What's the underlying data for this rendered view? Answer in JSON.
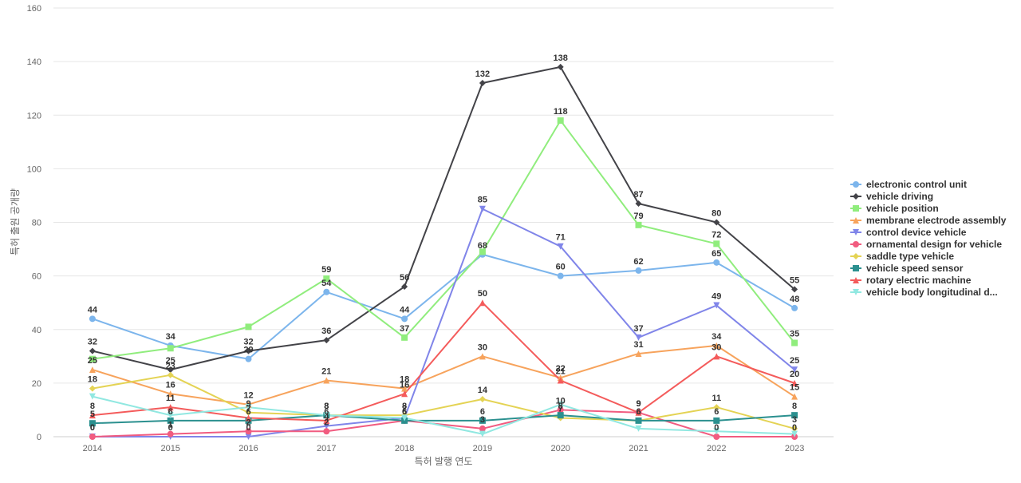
{
  "chart_data": {
    "type": "line",
    "xlabel": "특허 발행 연도",
    "ylabel": "특허 출원 공개량",
    "ylim": [
      0,
      160
    ],
    "yticks": [
      0,
      20,
      40,
      60,
      80,
      100,
      120,
      140,
      160
    ],
    "grid": true,
    "legend_position": "right",
    "categories": [
      "2014",
      "2015",
      "2016",
      "2017",
      "2018",
      "2019",
      "2020",
      "2021",
      "2022",
      "2023"
    ],
    "series": [
      {
        "name": "electronic control unit",
        "color": "#7cb5ec",
        "marker": "circle",
        "values": [
          44,
          34,
          29,
          54,
          44,
          68,
          60,
          62,
          65,
          48
        ]
      },
      {
        "name": "vehicle driving",
        "color": "#434348",
        "marker": "diamond",
        "values": [
          32,
          25,
          32,
          36,
          56,
          132,
          138,
          87,
          80,
          55
        ]
      },
      {
        "name": "vehicle position",
        "color": "#90ed7d",
        "marker": "square",
        "values": [
          29,
          33,
          41,
          59,
          37,
          69,
          118,
          79,
          72,
          35
        ]
      },
      {
        "name": "membrane electrode assembly",
        "color": "#f7a35c",
        "marker": "triangle",
        "values": [
          25,
          16,
          12,
          21,
          18,
          30,
          22,
          31,
          34,
          15
        ]
      },
      {
        "name": "control device vehicle",
        "color": "#8085e9",
        "marker": "triangle-down",
        "values": [
          0,
          0,
          0,
          4,
          7,
          85,
          71,
          37,
          49,
          25
        ]
      },
      {
        "name": "ornamental design for vehicle",
        "color": "#f15c80",
        "marker": "circle",
        "values": [
          0,
          1,
          2,
          2,
          6,
          3,
          10,
          9,
          0,
          0
        ]
      },
      {
        "name": "saddle type vehicle",
        "color": "#e4d354",
        "marker": "diamond",
        "values": [
          18,
          23,
          9,
          8,
          8,
          14,
          7,
          6,
          11,
          3
        ]
      },
      {
        "name": "vehicle speed sensor",
        "color": "#2b908f",
        "marker": "square",
        "values": [
          5,
          6,
          6,
          8,
          6,
          6,
          8,
          6,
          6,
          8
        ]
      },
      {
        "name": "rotary electric machine",
        "color": "#f45b5b",
        "marker": "triangle",
        "values": [
          8,
          11,
          7,
          6,
          16,
          50,
          21,
          9,
          30,
          20
        ]
      },
      {
        "name": "vehicle body longitudinal d...",
        "color": "#91e8e1",
        "marker": "triangle-down",
        "values": [
          15,
          8,
          11,
          8,
          7,
          1,
          12,
          3,
          2,
          1
        ]
      }
    ],
    "visible_labels": [
      {
        "series": 0,
        "points": [
          0,
          1,
          2,
          3,
          4,
          5,
          6,
          7,
          8,
          9
        ]
      },
      {
        "series": 1,
        "points": [
          0,
          1,
          2,
          3,
          4,
          5,
          6,
          7,
          8,
          9
        ]
      },
      {
        "series": 2,
        "points": [
          3,
          4,
          6,
          7,
          8,
          9
        ]
      },
      {
        "series": 3,
        "points": [
          0,
          1,
          2,
          3,
          4,
          5,
          6,
          7,
          8,
          9
        ]
      },
      {
        "series": 4,
        "points": [
          0,
          1,
          2,
          3,
          4,
          5,
          6,
          7,
          8,
          9
        ]
      },
      {
        "series": 5,
        "points": [
          0,
          1,
          2,
          3,
          4,
          5,
          6,
          7,
          8,
          9
        ]
      },
      {
        "series": 6,
        "points": [
          0,
          1,
          2,
          3,
          4,
          5,
          6,
          7,
          8,
          9
        ]
      },
      {
        "series": 7,
        "points": [
          0,
          1,
          2,
          3,
          4,
          5,
          6,
          7,
          8,
          9
        ]
      },
      {
        "series": 8,
        "points": [
          0,
          1,
          2,
          3,
          4,
          5,
          6,
          7,
          8,
          9
        ]
      }
    ]
  }
}
